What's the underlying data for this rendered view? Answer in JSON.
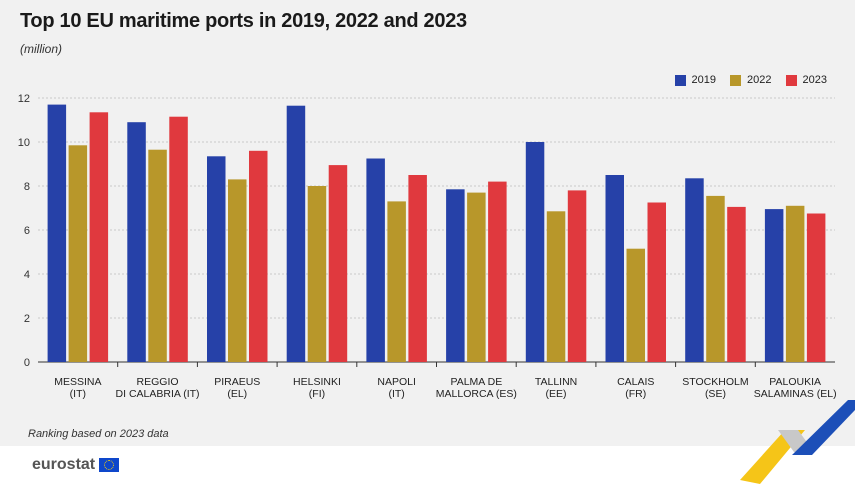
{
  "header": {
    "title": "Top 10 EU maritime ports in 2019, 2022 and 2023",
    "subtitle": "(million)"
  },
  "note": "Ranking based on 2023 data",
  "footer": {
    "logo_text": "eurostat"
  },
  "colors": {
    "2019": "#2641a8",
    "2022": "#b8972a",
    "2023": "#e0393e"
  },
  "chart_data": {
    "type": "bar",
    "title": "Top 10 EU maritime ports in 2019, 2022 and 2023",
    "subtitle": "(million)",
    "xlabel": "",
    "ylabel": "",
    "ylim": [
      0,
      12
    ],
    "yticks": [
      0,
      2,
      4,
      6,
      8,
      10,
      12
    ],
    "grid": true,
    "legend_position": "top-right",
    "categories": [
      [
        "MESSINA",
        "(IT)"
      ],
      [
        "REGGIO",
        "DI CALABRIA (IT)"
      ],
      [
        "PIRAEUS",
        "(EL)"
      ],
      [
        "HELSINKI",
        "(FI)"
      ],
      [
        "NAPOLI",
        "(IT)"
      ],
      [
        "PALMA DE",
        "MALLORCA (ES)"
      ],
      [
        "TALLINN",
        "(EE)"
      ],
      [
        "CALAIS",
        "(FR)"
      ],
      [
        "STOCKHOLM",
        "(SE)"
      ],
      [
        "PALOUKIA",
        "SALAMINAS (EL)"
      ]
    ],
    "series": [
      {
        "name": "2019",
        "color": "#2641a8",
        "values": [
          11.7,
          10.9,
          9.35,
          11.65,
          9.25,
          7.85,
          10.0,
          8.5,
          8.35,
          6.95
        ]
      },
      {
        "name": "2022",
        "color": "#b8972a",
        "values": [
          9.85,
          9.65,
          8.3,
          8.0,
          7.3,
          7.7,
          6.85,
          5.15,
          7.55,
          7.1
        ]
      },
      {
        "name": "2023",
        "color": "#e0393e",
        "values": [
          11.35,
          11.15,
          9.6,
          8.95,
          8.5,
          8.2,
          7.8,
          7.25,
          7.05,
          6.75
        ]
      }
    ]
  }
}
